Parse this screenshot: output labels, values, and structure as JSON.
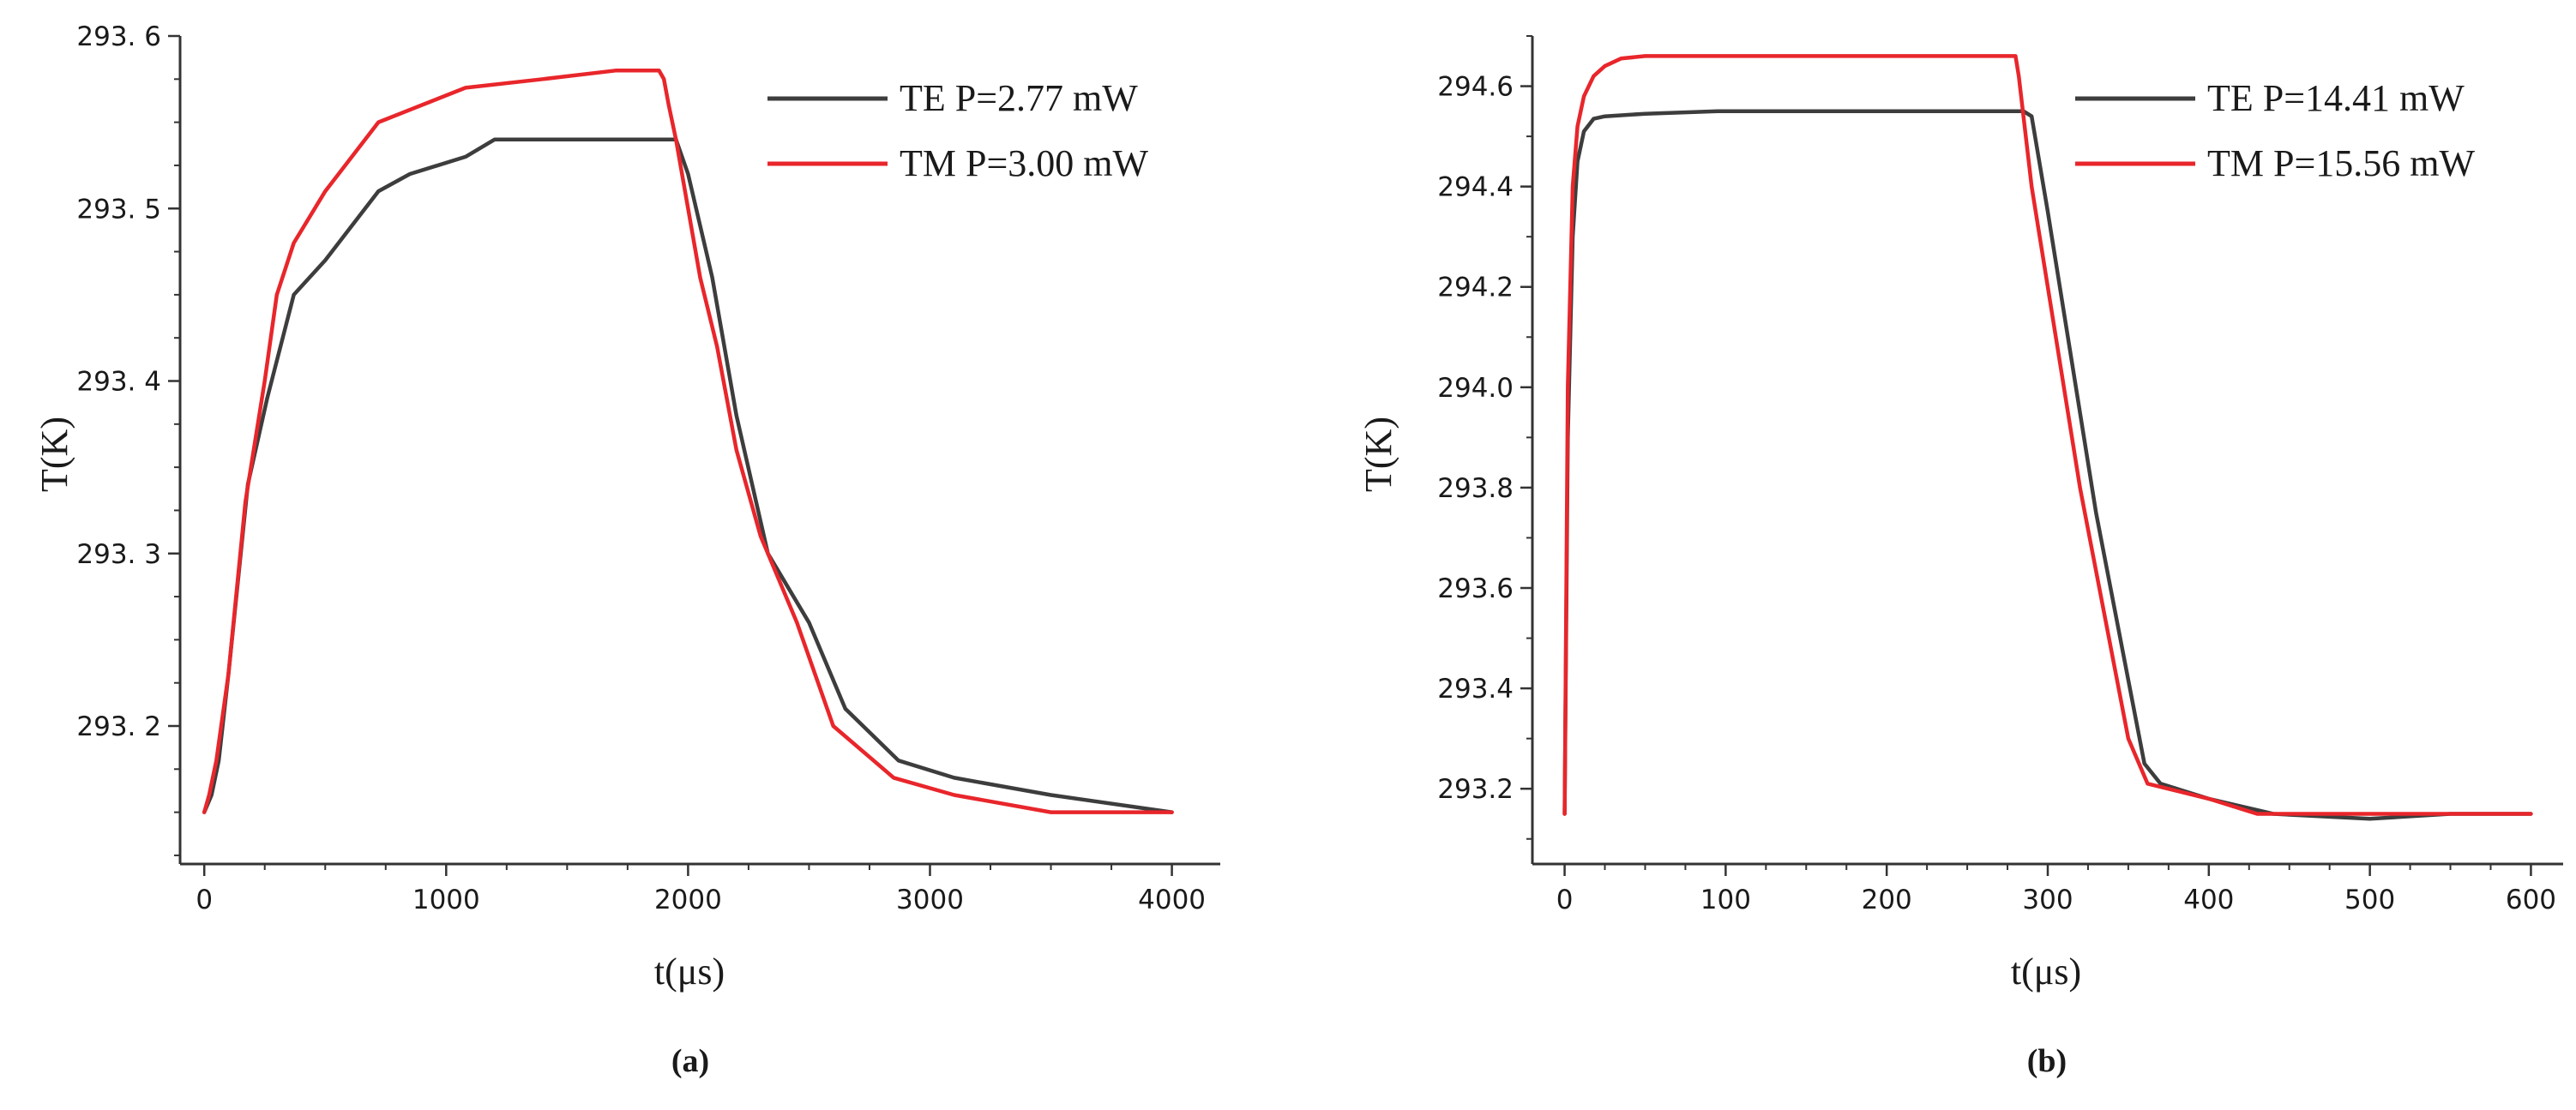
{
  "colors": {
    "te": "#3d3d3d",
    "tm": "#e8262b",
    "axis": "#333333"
  },
  "chart_data": [
    {
      "type": "line",
      "caption": "(a)",
      "xlabel": "t(μs)",
      "ylabel": "T(K)",
      "xlim": [
        -100,
        4200
      ],
      "ylim": [
        293.12,
        293.6
      ],
      "x_ticks": [
        0,
        1000,
        2000,
        3000,
        4000
      ],
      "x_tick_labels": [
        "0",
        "1000",
        "2000",
        "3000",
        "4000"
      ],
      "x_minor_step": 250,
      "y_ticks": [
        293.2,
        293.3,
        293.4,
        293.5,
        293.6
      ],
      "y_tick_labels": [
        "293. 2",
        "293. 3",
        "293. 4",
        "293. 5",
        "293. 6"
      ],
      "y_minor_step": 0.025,
      "legend_position": "top-right",
      "series": [
        {
          "name": "TE",
          "label": "TE  P=2.77 mW",
          "color": "#3d3d3d",
          "x": [
            0,
            30,
            60,
            100,
            180,
            260,
            370,
            500,
            720,
            850,
            1080,
            1200,
            1500,
            1800,
            1950,
            2000,
            2100,
            2200,
            2330,
            2500,
            2650,
            2870,
            3100,
            3500,
            4000
          ],
          "y": [
            293.15,
            293.16,
            293.18,
            293.23,
            293.34,
            293.39,
            293.45,
            293.47,
            293.51,
            293.52,
            293.53,
            293.54,
            293.54,
            293.54,
            293.54,
            293.52,
            293.46,
            293.38,
            293.3,
            293.26,
            293.21,
            293.18,
            293.17,
            293.16,
            293.15
          ]
        },
        {
          "name": "TM",
          "label": "TM  P=3.00 mW",
          "color": "#e8262b",
          "x": [
            0,
            20,
            50,
            100,
            170,
            250,
            300,
            370,
            500,
            720,
            900,
            1080,
            1400,
            1700,
            1880,
            1900,
            1920,
            1950,
            2000,
            2050,
            2120,
            2200,
            2300,
            2450,
            2600,
            2850,
            3100,
            3500,
            4000
          ],
          "y": [
            293.15,
            293.16,
            293.18,
            293.23,
            293.33,
            293.4,
            293.45,
            293.48,
            293.51,
            293.55,
            293.56,
            293.57,
            293.575,
            293.58,
            293.58,
            293.575,
            293.56,
            293.54,
            293.5,
            293.46,
            293.42,
            293.36,
            293.31,
            293.26,
            293.2,
            293.17,
            293.16,
            293.15,
            293.15
          ]
        }
      ]
    },
    {
      "type": "line",
      "caption": "(b)",
      "xlabel": "t(μs)",
      "ylabel": "T(K)",
      "xlim": [
        -20,
        620
      ],
      "ylim": [
        293.05,
        294.7
      ],
      "x_ticks": [
        0,
        100,
        200,
        300,
        400,
        500,
        600
      ],
      "x_tick_labels": [
        "0",
        "100",
        "200",
        "300",
        "400",
        "500",
        "600"
      ],
      "x_minor_step": 25,
      "y_ticks": [
        293.2,
        293.4,
        293.6,
        293.8,
        294.0,
        294.2,
        294.4,
        294.6
      ],
      "y_tick_labels": [
        "293.2",
        "293.4",
        "293.6",
        "293.8",
        "294.0",
        "294.2",
        "294.4",
        "294.6"
      ],
      "y_minor_step": 0.1,
      "legend_position": "top-right",
      "series": [
        {
          "name": "TE",
          "label": "TE  P=14.41 mW",
          "color": "#3d3d3d",
          "x": [
            0,
            2,
            5,
            8,
            12,
            18,
            25,
            50,
            95,
            150,
            200,
            250,
            285,
            290,
            300,
            330,
            360,
            370,
            400,
            440,
            500,
            550,
            600
          ],
          "y": [
            293.15,
            293.9,
            294.3,
            294.45,
            294.51,
            294.535,
            294.54,
            294.545,
            294.55,
            294.55,
            294.55,
            294.55,
            294.55,
            294.54,
            294.35,
            293.75,
            293.25,
            293.21,
            293.18,
            293.15,
            293.14,
            293.15,
            293.15
          ]
        },
        {
          "name": "TM",
          "label": "TM  P=15.56 mW",
          "color": "#e8262b",
          "x": [
            0,
            2,
            5,
            8,
            12,
            18,
            25,
            35,
            50,
            100,
            200,
            270,
            280,
            282,
            290,
            320,
            350,
            362,
            400,
            430,
            500,
            550,
            600
          ],
          "y": [
            293.15,
            294.0,
            294.4,
            294.52,
            294.58,
            294.62,
            294.64,
            294.655,
            294.66,
            294.66,
            294.66,
            294.66,
            294.66,
            294.62,
            294.4,
            293.8,
            293.3,
            293.21,
            293.18,
            293.15,
            293.15,
            293.15,
            293.15
          ]
        }
      ]
    }
  ]
}
